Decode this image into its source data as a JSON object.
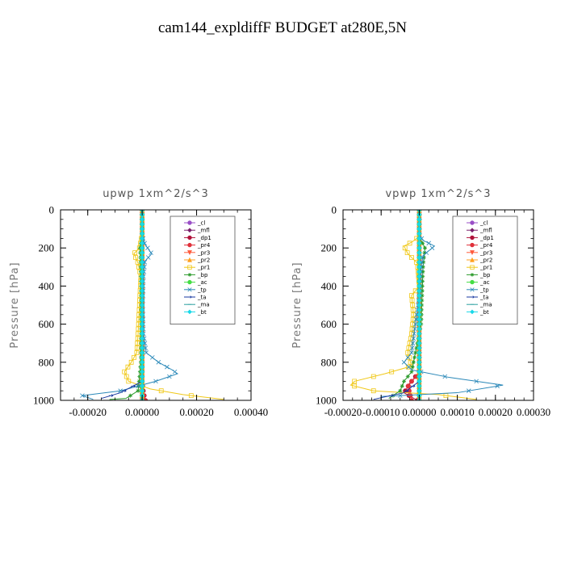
{
  "figure": {
    "title": "cam144_expldiffF  BUDGET at280E,5N"
  },
  "chart_data": [
    {
      "type": "line",
      "title": "upwp   1xm^2/s^3",
      "ylabel": "Pressure [hPa]",
      "xlim": [
        -0.0003,
        0.0004
      ],
      "ylim": [
        1000,
        0
      ],
      "xticks": [
        -0.0002,
        0.0,
        0.0002,
        0.0004
      ],
      "xtick_labels": [
        "-0.00020",
        "0.00000",
        "0.00020",
        "0.00040"
      ],
      "yticks": [
        0,
        200,
        400,
        600,
        800,
        1000
      ],
      "ytick_labels": [
        "0",
        "200",
        "400",
        "600",
        "800",
        "1000"
      ],
      "legend_position": "top-right",
      "series": [
        {
          "name": "_cl",
          "color": "#9a4fc7",
          "marker": "circle",
          "points": [
            [
              0.0,
              0
            ],
            [
              0.0,
              1000
            ]
          ]
        },
        {
          "name": "_mfl",
          "color": "#7a1f6b",
          "marker": "diamond",
          "points": [
            [
              0.0,
              0
            ],
            [
              0.0,
              1000
            ]
          ]
        },
        {
          "name": "_dp1",
          "color": "#b0123a",
          "marker": "circle",
          "points": [
            [
              0.0,
              0
            ],
            [
              0.0,
              900
            ],
            [
              5e-06,
              960
            ],
            [
              1.2e-05,
              1000
            ]
          ]
        },
        {
          "name": "_pr4",
          "color": "#e0303a",
          "marker": "circle",
          "points": [
            [
              0.0,
              0
            ],
            [
              0.0,
              950
            ],
            [
              1e-05,
              1000
            ]
          ]
        },
        {
          "name": "_pr3",
          "color": "#ff5a3c",
          "marker": "triangle-down",
          "points": [
            [
              0.0,
              0
            ],
            [
              0.0,
              1000
            ]
          ]
        },
        {
          "name": "_pr2",
          "color": "#ffa020",
          "marker": "triangle-up",
          "points": [
            [
              0.0,
              0
            ],
            [
              0.0,
              1000
            ]
          ]
        },
        {
          "name": "_pr1",
          "color": "#f0c818",
          "marker": "square",
          "points": [
            [
              0.0,
              130
            ],
            [
              -1e-05,
              200
            ],
            [
              -3e-05,
              230
            ],
            [
              -1.5e-05,
              280
            ],
            [
              -5e-06,
              350
            ],
            [
              -1e-05,
              500
            ],
            [
              -1.5e-05,
              650
            ],
            [
              -2e-05,
              750
            ],
            [
              -4e-05,
              800
            ],
            [
              -6.5e-05,
              850
            ],
            [
              -5e-05,
              900
            ],
            [
              3e-05,
              940
            ],
            [
              0.00015,
              970
            ],
            [
              0.0003,
              995
            ]
          ]
        },
        {
          "name": "_bp",
          "color": "#2a9a2a",
          "marker": "star",
          "points": [
            [
              0.0,
              140
            ],
            [
              -8e-06,
              200
            ],
            [
              -5e-06,
              300
            ],
            [
              -3e-06,
              600
            ],
            [
              -5e-06,
              800
            ],
            [
              -1e-05,
              880
            ],
            [
              -1.5e-05,
              950
            ],
            [
              -6e-05,
              990
            ],
            [
              -0.00012,
              995
            ]
          ]
        },
        {
          "name": "_ac",
          "color": "#44dd44",
          "marker": "circle",
          "points": [
            [
              0.0,
              0
            ],
            [
              0.0,
              1000
            ]
          ]
        },
        {
          "name": "_tp",
          "color": "#2a88b8",
          "marker": "x",
          "points": [
            [
              0.0,
              130
            ],
            [
              1e-05,
              180
            ],
            [
              3.5e-05,
              230
            ],
            [
              1e-05,
              270
            ],
            [
              5e-06,
              350
            ],
            [
              2e-06,
              500
            ],
            [
              5e-06,
              650
            ],
            [
              1.5e-05,
              750
            ],
            [
              6e-05,
              800
            ],
            [
              0.00011,
              840
            ],
            [
              0.00013,
              860
            ],
            [
              5e-05,
              900
            ],
            [
              -8e-05,
              950
            ],
            [
              -0.00022,
              975
            ],
            [
              -0.00018,
              995
            ]
          ]
        },
        {
          "name": "_ta",
          "color": "#1a3aa0",
          "marker": "arrow",
          "points": [
            [
              0.0,
              0
            ],
            [
              0.0,
              900
            ],
            [
              -8e-05,
              960
            ],
            [
              -0.00015,
              990
            ]
          ]
        },
        {
          "name": "_ma",
          "color": "#2aa0a0",
          "marker": "dash",
          "points": [
            [
              0.0,
              0
            ],
            [
              0.0,
              1000
            ]
          ]
        },
        {
          "name": "_bt",
          "color": "#18d8e8",
          "marker": "diamond",
          "points": [
            [
              0.0,
              0
            ],
            [
              0.0,
              1000
            ]
          ]
        }
      ]
    },
    {
      "type": "line",
      "title": "vpwp   1xm^2/s^3",
      "ylabel": "Pressure [hPa]",
      "xlim": [
        -0.0002,
        0.0003
      ],
      "ylim": [
        1000,
        0
      ],
      "xticks": [
        -0.0002,
        -0.0001,
        0.0,
        0.0001,
        0.0002,
        0.0003
      ],
      "xtick_labels": [
        "-0.00020",
        "-0.00010",
        "0.00000",
        "0.00010",
        "0.00020",
        "0.00030"
      ],
      "yticks": [
        0,
        200,
        400,
        600,
        800,
        1000
      ],
      "ytick_labels": [
        "0",
        "200",
        "400",
        "600",
        "800",
        "1000"
      ],
      "legend_position": "top-right",
      "series": [
        {
          "name": "_cl",
          "color": "#9a4fc7",
          "marker": "circle",
          "points": [
            [
              0.0,
              0
            ],
            [
              0.0,
              1000
            ]
          ]
        },
        {
          "name": "_mfl",
          "color": "#7a1f6b",
          "marker": "diamond",
          "points": [
            [
              0.0,
              0
            ],
            [
              0.0,
              1000
            ]
          ]
        },
        {
          "name": "_dp1",
          "color": "#b0123a",
          "marker": "circle",
          "points": [
            [
              0.0,
              0
            ],
            [
              0.0,
              850
            ],
            [
              -2e-05,
              900
            ],
            [
              -4e-05,
              960
            ],
            [
              -5e-06,
              1000
            ]
          ]
        },
        {
          "name": "_pr4",
          "color": "#e0303a",
          "marker": "circle",
          "points": [
            [
              0.0,
              0
            ],
            [
              0.0,
              860
            ],
            [
              -3e-05,
              920
            ],
            [
              -2e-05,
              1000
            ]
          ]
        },
        {
          "name": "_pr3",
          "color": "#ff5a3c",
          "marker": "triangle-down",
          "points": [
            [
              0.0,
              0
            ],
            [
              0.0,
              1000
            ]
          ]
        },
        {
          "name": "_pr2",
          "color": "#ffa020",
          "marker": "triangle-up",
          "points": [
            [
              0.0,
              0
            ],
            [
              0.0,
              1000
            ]
          ]
        },
        {
          "name": "_pr1",
          "color": "#f0c818",
          "marker": "square",
          "points": [
            [
              0.0,
              140
            ],
            [
              -2e-05,
              170
            ],
            [
              -4e-05,
              190
            ],
            [
              -3e-05,
              230
            ],
            [
              -5e-06,
              280
            ],
            [
              0.0,
              400
            ],
            [
              -2e-05,
              450
            ],
            [
              -1.5e-05,
              550
            ],
            [
              -2e-05,
              650
            ],
            [
              -3e-05,
              750
            ],
            [
              -2e-05,
              820
            ],
            [
              -9e-05,
              860
            ],
            [
              -0.00017,
              900
            ],
            [
              -0.00018,
              920
            ],
            [
              -0.00012,
              950
            ],
            [
              5e-05,
              970
            ],
            [
              0.00015,
              995
            ]
          ]
        },
        {
          "name": "_bp",
          "color": "#2a9a2a",
          "marker": "star",
          "points": [
            [
              0.0,
              140
            ],
            [
              1.5e-05,
              200
            ],
            [
              1e-05,
              300
            ],
            [
              5e-06,
              600
            ],
            [
              -1e-05,
              750
            ],
            [
              -2e-05,
              850
            ],
            [
              -4e-05,
              900
            ],
            [
              -5e-05,
              950
            ],
            [
              -8e-05,
              990
            ]
          ]
        },
        {
          "name": "_ac",
          "color": "#44dd44",
          "marker": "circle",
          "points": [
            [
              0.0,
              0
            ],
            [
              0.0,
              1000
            ]
          ]
        },
        {
          "name": "_tp",
          "color": "#2a88b8",
          "marker": "x",
          "points": [
            [
              0.0,
              130
            ],
            [
              1e-05,
              160
            ],
            [
              4e-05,
              190
            ],
            [
              1e-05,
              240
            ],
            [
              5e-06,
              300
            ],
            [
              0.0,
              450
            ],
            [
              -1e-05,
              600
            ],
            [
              -2e-05,
              750
            ],
            [
              -4e-05,
              800
            ],
            [
              -2e-05,
              840
            ],
            [
              8e-05,
              880
            ],
            [
              0.00022,
              920
            ],
            [
              0.0001,
              960
            ],
            [
              -0.0001,
              980
            ],
            [
              -0.0001,
              995
            ]
          ]
        },
        {
          "name": "_ta",
          "color": "#1a3aa0",
          "marker": "arrow",
          "points": [
            [
              0.0,
              0
            ],
            [
              0.0,
              900
            ],
            [
              -4e-05,
              960
            ],
            [
              -0.00012,
              995
            ]
          ]
        },
        {
          "name": "_ma",
          "color": "#2aa0a0",
          "marker": "dash",
          "points": [
            [
              0.0,
              0
            ],
            [
              0.0,
              1000
            ]
          ]
        },
        {
          "name": "_bt",
          "color": "#18d8e8",
          "marker": "diamond",
          "points": [
            [
              0.0,
              0
            ],
            [
              0.0,
              1000
            ]
          ]
        }
      ]
    }
  ]
}
